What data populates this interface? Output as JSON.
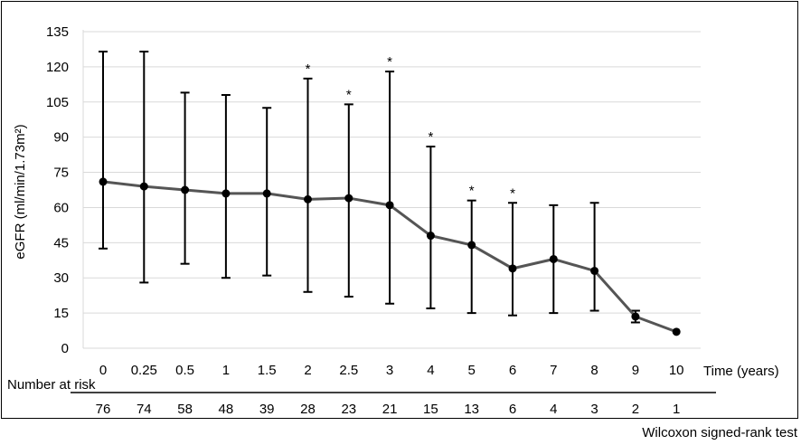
{
  "chart_data": {
    "type": "line",
    "title": "",
    "xlabel": "Time (years)",
    "ylabel": "eGFR (ml/min/1.73m²)",
    "ylim": [
      0,
      135
    ],
    "yticks": [
      0,
      15,
      30,
      45,
      60,
      75,
      90,
      105,
      120,
      135
    ],
    "grid": "horizontal",
    "categories": [
      "0",
      "0.25",
      "0.5",
      "1",
      "1.5",
      "2",
      "2.5",
      "3",
      "4",
      "5",
      "6",
      "7",
      "8",
      "9",
      "10"
    ],
    "series": [
      {
        "values": [
          71,
          69,
          67.5,
          66,
          66,
          63.5,
          64,
          61,
          48,
          44,
          34,
          38,
          33,
          13.5,
          7
        ],
        "error_upper": [
          126.5,
          126.5,
          109,
          108,
          102.5,
          115,
          104,
          118,
          86,
          63,
          62,
          61,
          62,
          16,
          7
        ],
        "error_lower": [
          42.5,
          28,
          36,
          30,
          31,
          24,
          22,
          19,
          17,
          15,
          14,
          15,
          16,
          11,
          7
        ],
        "significant": [
          false,
          false,
          false,
          false,
          false,
          true,
          true,
          true,
          true,
          true,
          true,
          false,
          false,
          false,
          false
        ]
      }
    ],
    "significance_marker": "*",
    "colors": {
      "line": "#555555",
      "marker": "#000000",
      "grid": "#d9d9d9"
    }
  },
  "risk_table": {
    "label": "Number at risk",
    "values": [
      "76",
      "74",
      "58",
      "48",
      "39",
      "28",
      "23",
      "21",
      "15",
      "13",
      "6",
      "4",
      "3",
      "2",
      "1"
    ]
  },
  "footnote": "Wilcoxon signed-rank test"
}
